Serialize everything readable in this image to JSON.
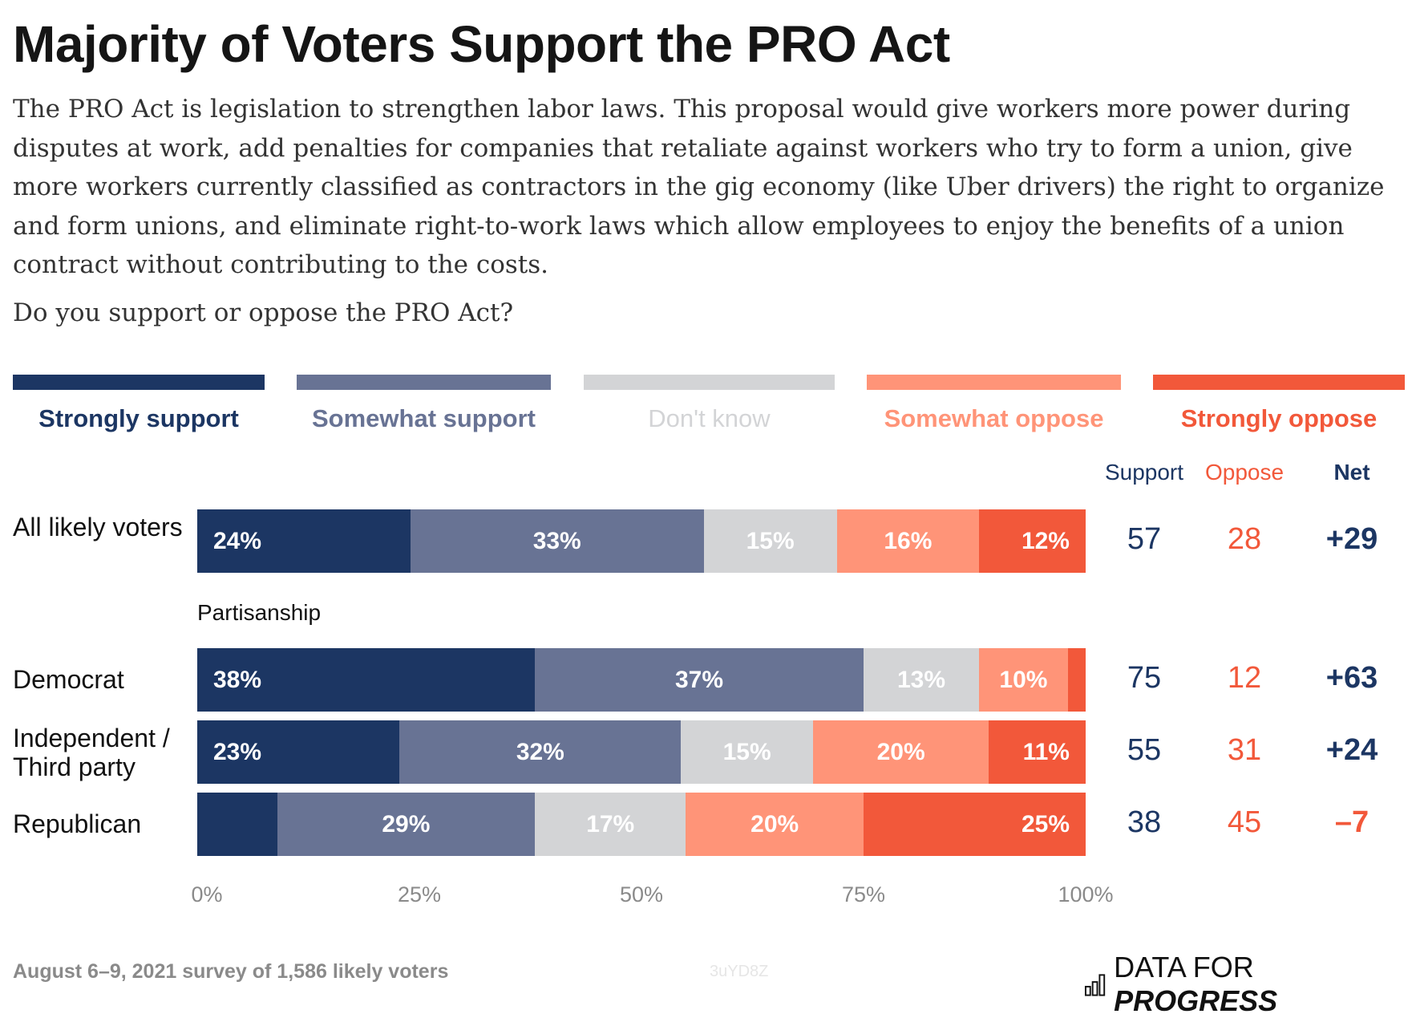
{
  "title": "Majority of Voters Support the PRO Act",
  "description": "The PRO Act is legislation to strengthen labor laws. This proposal would give workers more power during disputes at work, add penalties for companies that retaliate against workers who try to form a union, give more workers currently classified as contractors in the gig economy (like Uber drivers) the right to organize and form unions, and eliminate right-to-work laws which allow employees to enjoy the benefits of a union contract without contributing to the costs.",
  "question": "Do you support or oppose the PRO Act?",
  "footer": "August 6–9, 2021 survey of 1,586 likely voters",
  "code": "3uYD8Z",
  "logo": {
    "text_light": "DATA FOR ",
    "text_bold": "PROGRESS",
    "icon": "bar-chart-icon"
  },
  "chart_data": {
    "type": "bar",
    "orientation": "horizontal",
    "stacked": true,
    "legend_placement": "top",
    "categories": [
      "All likely voters",
      "Democrat",
      "Independent / Third party",
      "Republican"
    ],
    "group_label": "Partisanship",
    "series": [
      {
        "name": "Strongly support",
        "color": "#1c3663",
        "label_color": "#1c3663",
        "values": [
          24,
          38,
          23,
          9
        ],
        "labels": [
          "24%",
          "38%",
          "23%",
          ""
        ]
      },
      {
        "name": "Somewhat support",
        "color": "#687394",
        "label_color": "#687394",
        "values": [
          33,
          37,
          32,
          29
        ],
        "labels": [
          "33%",
          "37%",
          "32%",
          "29%"
        ]
      },
      {
        "name": "Don't know",
        "color": "#d3d4d6",
        "label_color": "#d3d4d6",
        "values": [
          15,
          13,
          15,
          17
        ],
        "labels": [
          "15%",
          "13%",
          "15%",
          "17%"
        ]
      },
      {
        "name": "Somewhat oppose",
        "color": "#ff9478",
        "label_color": "#ff9478",
        "values": [
          16,
          10,
          20,
          20
        ],
        "labels": [
          "16%",
          "10%",
          "20%",
          "20%"
        ]
      },
      {
        "name": "Strongly oppose",
        "color": "#f2583a",
        "label_color": "#f2583a",
        "values": [
          12,
          2,
          11,
          25
        ],
        "labels": [
          "12%",
          "",
          "11%",
          "25%"
        ]
      }
    ],
    "xticks": [
      "0%",
      "25%",
      "50%",
      "75%",
      "100%"
    ],
    "xlim": [
      0,
      100
    ],
    "summary_headers": {
      "support": "Support",
      "oppose": "Oppose",
      "net": "Net"
    },
    "summary": [
      {
        "support": "57",
        "oppose": "28",
        "net": "+29"
      },
      {
        "support": "75",
        "oppose": "12",
        "net": "+63"
      },
      {
        "support": "55",
        "oppose": "31",
        "net": "+24"
      },
      {
        "support": "38",
        "oppose": "45",
        "net": "–7"
      }
    ]
  }
}
